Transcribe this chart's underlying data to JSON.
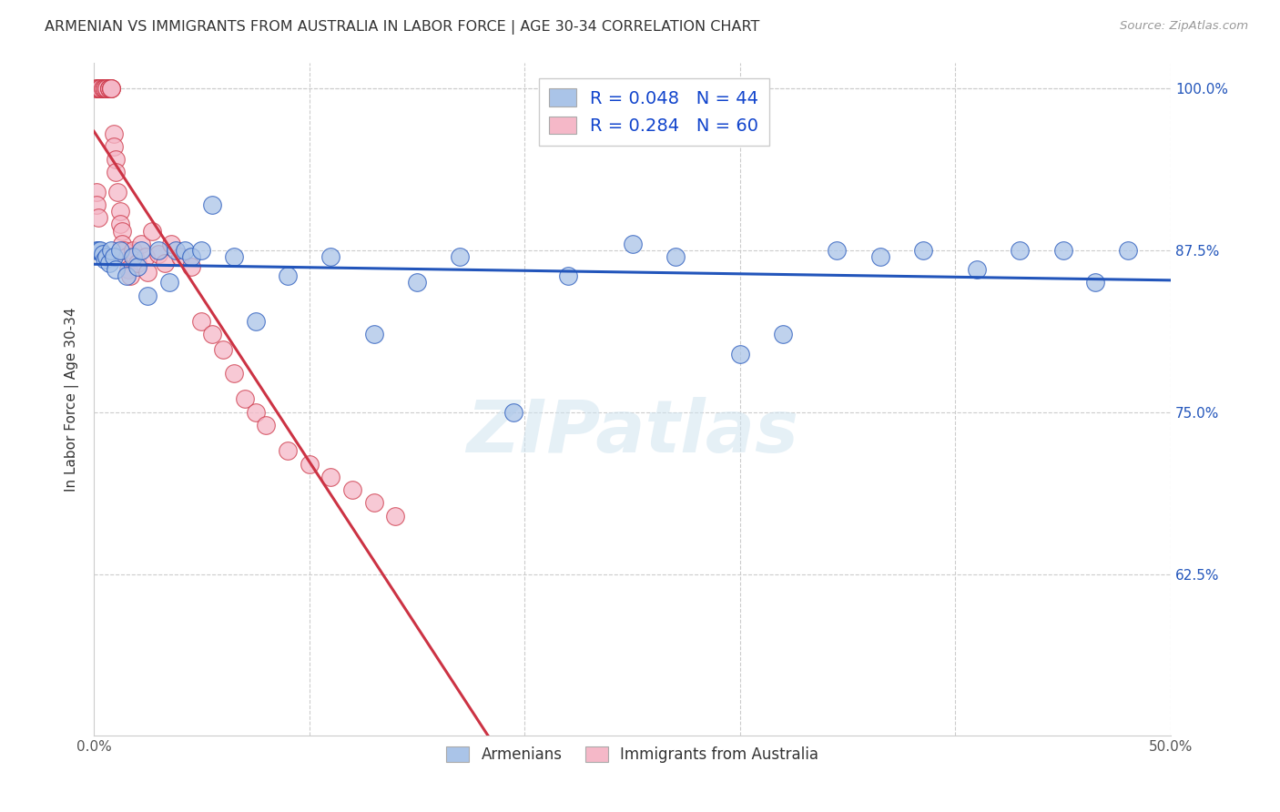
{
  "title": "ARMENIAN VS IMMIGRANTS FROM AUSTRALIA IN LABOR FORCE | AGE 30-34 CORRELATION CHART",
  "source": "Source: ZipAtlas.com",
  "ylabel": "In Labor Force | Age 30-34",
  "xlim": [
    0.0,
    0.5
  ],
  "ylim": [
    0.5,
    1.02
  ],
  "yticks": [
    0.625,
    0.75,
    0.875,
    1.0
  ],
  "ytick_labels": [
    "62.5%",
    "75.0%",
    "87.5%",
    "100.0%"
  ],
  "xticks": [
    0.0,
    0.1,
    0.2,
    0.3,
    0.4,
    0.5
  ],
  "xtick_labels": [
    "0.0%",
    "",
    "",
    "",
    "",
    "50.0%"
  ],
  "blue_R": 0.048,
  "blue_N": 44,
  "pink_R": 0.284,
  "pink_N": 60,
  "blue_color": "#aac4e8",
  "pink_color": "#f5b8c8",
  "blue_line_color": "#2255bb",
  "pink_line_color": "#cc3344",
  "watermark": "ZIPatlas",
  "blue_x": [
    0.001,
    0.002,
    0.003,
    0.004,
    0.005,
    0.006,
    0.007,
    0.008,
    0.009,
    0.01,
    0.012,
    0.015,
    0.018,
    0.02,
    0.022,
    0.025,
    0.03,
    0.035,
    0.038,
    0.042,
    0.045,
    0.05,
    0.055,
    0.065,
    0.075,
    0.09,
    0.11,
    0.13,
    0.15,
    0.17,
    0.195,
    0.22,
    0.25,
    0.27,
    0.3,
    0.32,
    0.345,
    0.365,
    0.385,
    0.41,
    0.43,
    0.45,
    0.465,
    0.48
  ],
  "blue_y": [
    0.875,
    0.875,
    0.875,
    0.872,
    0.868,
    0.87,
    0.865,
    0.875,
    0.87,
    0.86,
    0.875,
    0.855,
    0.87,
    0.862,
    0.875,
    0.84,
    0.875,
    0.85,
    0.875,
    0.875,
    0.87,
    0.875,
    0.91,
    0.87,
    0.82,
    0.855,
    0.87,
    0.81,
    0.85,
    0.87,
    0.75,
    0.855,
    0.88,
    0.87,
    0.795,
    0.81,
    0.875,
    0.87,
    0.875,
    0.86,
    0.875,
    0.875,
    0.85,
    0.875
  ],
  "pink_x": [
    0.001,
    0.001,
    0.002,
    0.002,
    0.003,
    0.003,
    0.004,
    0.004,
    0.005,
    0.005,
    0.005,
    0.006,
    0.006,
    0.007,
    0.007,
    0.007,
    0.008,
    0.008,
    0.008,
    0.009,
    0.009,
    0.01,
    0.01,
    0.011,
    0.012,
    0.012,
    0.013,
    0.013,
    0.014,
    0.015,
    0.016,
    0.017,
    0.018,
    0.019,
    0.02,
    0.022,
    0.024,
    0.025,
    0.027,
    0.03,
    0.033,
    0.036,
    0.04,
    0.045,
    0.05,
    0.055,
    0.06,
    0.065,
    0.07,
    0.075,
    0.08,
    0.09,
    0.1,
    0.11,
    0.12,
    0.13,
    0.14,
    0.001,
    0.001,
    0.002
  ],
  "pink_y": [
    1.0,
    1.0,
    1.0,
    1.0,
    1.0,
    1.0,
    1.0,
    1.0,
    1.0,
    1.0,
    1.0,
    1.0,
    1.0,
    1.0,
    1.0,
    1.0,
    1.0,
    1.0,
    1.0,
    0.965,
    0.955,
    0.945,
    0.935,
    0.92,
    0.905,
    0.895,
    0.89,
    0.88,
    0.875,
    0.87,
    0.86,
    0.855,
    0.875,
    0.87,
    0.865,
    0.88,
    0.87,
    0.858,
    0.89,
    0.872,
    0.865,
    0.88,
    0.87,
    0.862,
    0.82,
    0.81,
    0.798,
    0.78,
    0.76,
    0.75,
    0.74,
    0.72,
    0.71,
    0.7,
    0.69,
    0.68,
    0.67,
    0.92,
    0.91,
    0.9
  ]
}
